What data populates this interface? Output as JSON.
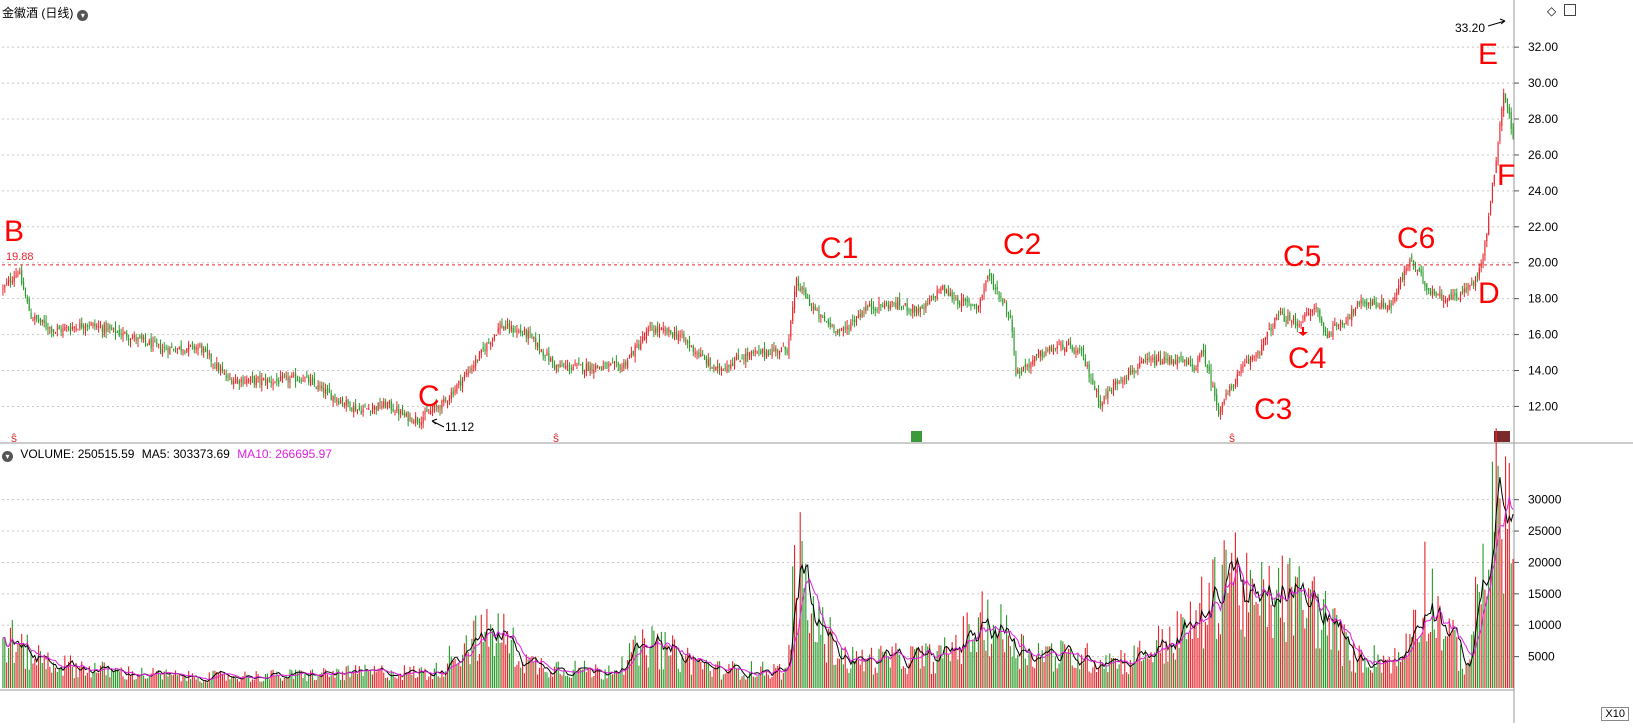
{
  "title": "金徽酒 (日线)",
  "volume_header": {
    "volume_label": "VOLUME: 250515.59",
    "ma5_label": "MA5: 303373.69",
    "ma10_label": "MA10: 266695.97"
  },
  "multiplier_label": "X10",
  "colors": {
    "up": "#e8262b",
    "down": "#2a9a2a",
    "ma5": "#000000",
    "ma10": "#e020e0",
    "annotation": "#ff0000",
    "gridline": "#c8c8c8"
  },
  "markers": [
    {
      "label": "B",
      "price": 19.88
    },
    {
      "label": "C",
      "price": 11.12
    },
    {
      "label": "C1"
    },
    {
      "label": "C2"
    },
    {
      "label": "C3"
    },
    {
      "label": "C4"
    },
    {
      "label": "C5"
    },
    {
      "label": "C6"
    },
    {
      "label": "D"
    },
    {
      "label": "E",
      "price": 33.2
    },
    {
      "label": "F"
    }
  ],
  "chart_data": [
    {
      "type": "candlestick",
      "title": "金徽酒 (日线)",
      "ylim": [
        10.8,
        33.4
      ],
      "yticks": [
        "12.00",
        "14.00",
        "16.00",
        "18.00",
        "20.00",
        "22.00",
        "24.00",
        "26.00",
        "28.00",
        "30.00",
        "32.00"
      ],
      "reference_line": 19.88,
      "high_label": "33.20",
      "low_label": "11.12",
      "start_label": "19.88",
      "grid": true,
      "anchors": [
        [
          0,
          18.5
        ],
        [
          8,
          19.6
        ],
        [
          15,
          17.0
        ],
        [
          28,
          16.2
        ],
        [
          45,
          16.6
        ],
        [
          65,
          16.0
        ],
        [
          85,
          15.2
        ],
        [
          105,
          15.3
        ],
        [
          120,
          13.5
        ],
        [
          145,
          13.4
        ],
        [
          160,
          13.6
        ],
        [
          175,
          12.6
        ],
        [
          190,
          11.8
        ],
        [
          205,
          12.1
        ],
        [
          215,
          11.4
        ],
        [
          222,
          11.3
        ],
        [
          235,
          12.2
        ],
        [
          250,
          14.2
        ],
        [
          265,
          16.5
        ],
        [
          280,
          16.0
        ],
        [
          295,
          14.2
        ],
        [
          315,
          14.2
        ],
        [
          330,
          14.2
        ],
        [
          345,
          16.3
        ],
        [
          360,
          16.0
        ],
        [
          380,
          14.0
        ],
        [
          395,
          14.8
        ],
        [
          410,
          15.1
        ],
        [
          418,
          15.2
        ],
        [
          423,
          18.9
        ],
        [
          435,
          17.0
        ],
        [
          447,
          16.1
        ],
        [
          460,
          17.5
        ],
        [
          475,
          17.7
        ],
        [
          490,
          17.3
        ],
        [
          500,
          18.6
        ],
        [
          510,
          17.8
        ],
        [
          520,
          17.6
        ],
        [
          525,
          19.3
        ],
        [
          535,
          17.5
        ],
        [
          538,
          16.4
        ],
        [
          540,
          13.8
        ],
        [
          555,
          15.0
        ],
        [
          565,
          15.4
        ],
        [
          575,
          14.9
        ],
        [
          585,
          12.2
        ],
        [
          595,
          13.5
        ],
        [
          610,
          14.5
        ],
        [
          625,
          14.6
        ],
        [
          635,
          14.2
        ],
        [
          640,
          15.0
        ],
        [
          648,
          11.8
        ],
        [
          660,
          14.0
        ],
        [
          670,
          15.2
        ],
        [
          680,
          17.1
        ],
        [
          690,
          16.6
        ],
        [
          700,
          17.5
        ],
        [
          705,
          16.0
        ],
        [
          715,
          16.8
        ],
        [
          725,
          17.8
        ],
        [
          740,
          17.6
        ],
        [
          750,
          20.2
        ],
        [
          760,
          18.5
        ],
        [
          770,
          18.0
        ],
        [
          778,
          18.3
        ],
        [
          785,
          19.0
        ],
        [
          790,
          21.0
        ],
        [
          795,
          25.0
        ],
        [
          800,
          29.5
        ],
        [
          803,
          28.2
        ],
        [
          805,
          26.8
        ]
      ],
      "n_candles": 806
    },
    {
      "type": "bar",
      "title": "VOLUME",
      "ylim": [
        0,
        36000
      ],
      "yticks": [
        "5000",
        "10000",
        "15000",
        "20000",
        "25000",
        "30000"
      ],
      "series": [
        {
          "name": "VOLUME",
          "anchors": [
            [
              0,
              9000
            ],
            [
              10,
              6000
            ],
            [
              30,
              3800
            ],
            [
              60,
              2600
            ],
            [
              100,
              1800
            ],
            [
              150,
              2000
            ],
            [
              200,
              2600
            ],
            [
              230,
              2500
            ],
            [
              250,
              8000
            ],
            [
              265,
              9000
            ],
            [
              280,
              4000
            ],
            [
              320,
              2600
            ],
            [
              345,
              7000
            ],
            [
              380,
              3000
            ],
            [
              418,
              2800
            ],
            [
              423,
              21000
            ],
            [
              432,
              11000
            ],
            [
              450,
              4500
            ],
            [
              500,
              5000
            ],
            [
              525,
              11000
            ],
            [
              545,
              6000
            ],
            [
              570,
              5000
            ],
            [
              600,
              4500
            ],
            [
              630,
              9000
            ],
            [
              645,
              14000
            ],
            [
              652,
              22000
            ],
            [
              665,
              13000
            ],
            [
              680,
              15000
            ],
            [
              700,
              13000
            ],
            [
              720,
              5000
            ],
            [
              745,
              4500
            ],
            [
              758,
              17000
            ],
            [
              768,
              10000
            ],
            [
              780,
              3500
            ],
            [
              792,
              24000
            ],
            [
              800,
              32000
            ],
            [
              805,
              25000
            ]
          ]
        },
        {
          "name": "MA5"
        },
        {
          "name": "MA10"
        }
      ],
      "grid": true
    }
  ]
}
